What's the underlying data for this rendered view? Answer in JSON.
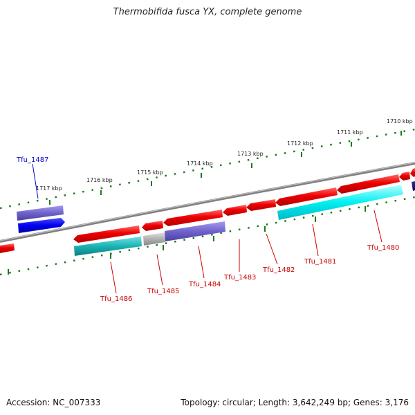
{
  "title": "Thermobifida fusca YX, complete genome",
  "footer": {
    "accession": "Accession: NC_007333",
    "summary": "Topology: circular; Length: 3,642,249 bp; Genes: 3,176"
  },
  "scale_labels": [
    "1717 kbp",
    "1716 kbp",
    "1715 kbp",
    "1714 kbp",
    "1713 kbp",
    "1712 kbp",
    "1711 kbp",
    "1710 kbp"
  ],
  "genes": [
    {
      "label": "Tfu_1487",
      "color": "#0000cc"
    },
    {
      "label": "Tfu_1486",
      "color": "#cc0000"
    },
    {
      "label": "Tfu_1485",
      "color": "#cc0000"
    },
    {
      "label": "Tfu_1484",
      "color": "#cc0000"
    },
    {
      "label": "Tfu_1483",
      "color": "#cc0000"
    },
    {
      "label": "Tfu_1482",
      "color": "#cc0000"
    },
    {
      "label": "Tfu_1481",
      "color": "#cc0000"
    },
    {
      "label": "Tfu_1480",
      "color": "#cc0000"
    }
  ],
  "colors": {
    "forward_gene": "#e60000",
    "reverse_gene_blue": "#0000ee",
    "cog_purple": "#6f63cc",
    "cog_teal": "#1ab3b3",
    "cog_cyan": "#00f0f0",
    "cog_grey": "#b0b0b0",
    "navy": "#000080",
    "backbone": "#808080",
    "scale": "#1a7a1a"
  }
}
